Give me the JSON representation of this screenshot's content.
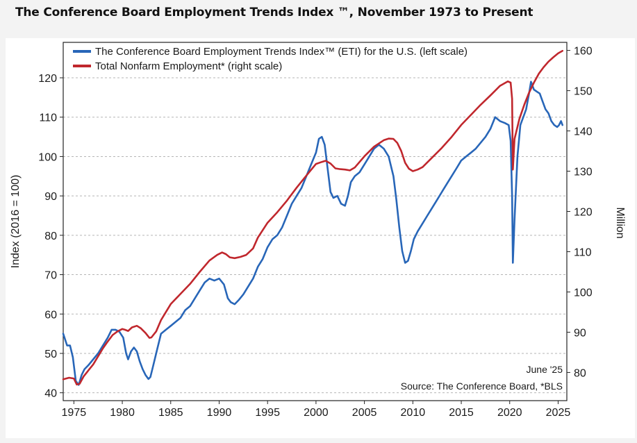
{
  "page": {
    "title": "The Conference Board Employment Trends Index ™, November 1973 to Present"
  },
  "chart_data": {
    "type": "line",
    "title": "The Conference Board Employment Trends Index ™, November 1973 to Present",
    "xlabel": "",
    "ylabel": "Index (2016 = 100)",
    "y2label": "Million",
    "xlim": [
      1973.9,
      2025.9
    ],
    "ylim": [
      38,
      129
    ],
    "y2lim": [
      73,
      162
    ],
    "x_ticks": [
      1975,
      1980,
      1985,
      1990,
      1995,
      2000,
      2005,
      2010,
      2015,
      2020,
      2025
    ],
    "y_ticks": [
      40,
      50,
      60,
      70,
      80,
      90,
      100,
      110,
      120
    ],
    "y2_ticks": [
      80,
      90,
      100,
      110,
      120,
      130,
      140,
      150,
      160
    ],
    "grid": "horizontal-dashed",
    "legend_position": "top-left",
    "series": [
      {
        "name": "The Conference Board Employment Trends Index™ (ETI) for the U.S. (left scale)",
        "color": "#2866b8",
        "axis": "left",
        "x": [
          1973.9,
          1974.3,
          1974.6,
          1974.9,
          1975.2,
          1975.5,
          1975.8,
          1976.1,
          1976.5,
          1977.0,
          1977.5,
          1978.0,
          1978.5,
          1978.9,
          1979.3,
          1979.7,
          1980.1,
          1980.4,
          1980.6,
          1980.9,
          1981.2,
          1981.5,
          1981.8,
          1982.1,
          1982.4,
          1982.7,
          1982.9,
          1983.2,
          1983.6,
          1984.0,
          1984.5,
          1985.0,
          1985.5,
          1986.0,
          1986.5,
          1987.0,
          1987.5,
          1988.0,
          1988.5,
          1989.0,
          1989.5,
          1990.0,
          1990.5,
          1990.9,
          1991.2,
          1991.6,
          1992.0,
          1992.5,
          1993.0,
          1993.5,
          1994.0,
          1994.5,
          1995.0,
          1995.5,
          1996.0,
          1996.5,
          1997.0,
          1997.5,
          1998.0,
          1998.5,
          1999.0,
          1999.5,
          2000.0,
          2000.3,
          2000.6,
          2000.9,
          2001.2,
          2001.5,
          2001.8,
          2002.2,
          2002.6,
          2003.0,
          2003.3,
          2003.6,
          2004.0,
          2004.5,
          2005.0,
          2005.5,
          2006.0,
          2006.5,
          2007.0,
          2007.5,
          2008.0,
          2008.3,
          2008.6,
          2008.9,
          2009.2,
          2009.5,
          2009.8,
          2010.1,
          2010.5,
          2011.0,
          2011.5,
          2012.0,
          2012.5,
          2013.0,
          2013.5,
          2014.0,
          2014.5,
          2015.0,
          2015.5,
          2016.0,
          2016.5,
          2017.0,
          2017.5,
          2018.0,
          2018.5,
          2019.0,
          2019.5,
          2019.9,
          2020.1,
          2020.25,
          2020.33,
          2020.5,
          2020.8,
          2021.1,
          2021.4,
          2021.7,
          2022.0,
          2022.2,
          2022.5,
          2022.8,
          2023.1,
          2023.4,
          2023.7,
          2024.0,
          2024.3,
          2024.6,
          2024.9,
          2025.1,
          2025.3,
          2025.45
        ],
        "values": [
          55,
          52,
          52,
          49,
          43,
          42,
          44.5,
          46,
          47,
          48.5,
          50,
          52,
          54,
          56,
          56,
          55.5,
          54,
          50,
          48.5,
          50.5,
          51.5,
          50.5,
          48,
          46,
          44.5,
          43.5,
          44,
          47,
          51,
          55,
          56,
          57,
          58,
          59,
          61,
          62,
          64,
          66,
          68,
          69,
          68.5,
          69,
          67.5,
          64,
          63,
          62.5,
          63.5,
          65,
          67,
          69,
          72,
          74,
          77,
          79,
          80,
          82,
          85,
          88,
          90,
          92,
          95,
          98,
          101,
          104.5,
          105,
          103,
          97,
          91,
          89.5,
          90,
          88,
          87.5,
          90,
          93.5,
          95,
          96,
          98,
          100,
          102,
          103,
          102,
          100,
          95,
          89,
          82,
          76,
          73,
          73.5,
          76,
          79,
          81,
          83,
          85,
          87,
          89,
          91,
          93,
          95,
          97,
          99,
          100,
          101,
          102,
          103.5,
          105,
          107,
          110,
          109,
          108.5,
          108,
          104,
          90,
          73,
          84,
          100,
          108,
          110,
          112,
          116,
          119,
          117,
          116.5,
          116,
          114,
          112,
          111,
          109,
          108,
          107.5,
          108,
          109,
          108
        ]
      },
      {
        "name": "Total Nonfarm Employment* (right scale)",
        "color": "#c0272d",
        "axis": "right",
        "x": [
          1973.9,
          1974.5,
          1975.0,
          1975.3,
          1975.6,
          1976.0,
          1976.5,
          1977.0,
          1977.5,
          1978.0,
          1978.5,
          1979.0,
          1979.5,
          1980.0,
          1980.3,
          1980.6,
          1981.0,
          1981.5,
          1981.9,
          1982.4,
          1982.8,
          1983.0,
          1983.5,
          1984.0,
          1984.5,
          1985.0,
          1986.0,
          1987.0,
          1988.0,
          1989.0,
          1989.8,
          1990.3,
          1990.7,
          1991.1,
          1991.6,
          1992.2,
          1992.8,
          1993.5,
          1994.0,
          1995.0,
          1996.0,
          1997.0,
          1998.0,
          1999.0,
          2000.0,
          2000.6,
          2001.0,
          2001.5,
          2002.0,
          2002.5,
          2003.0,
          2003.5,
          2004.0,
          2005.0,
          2006.0,
          2007.0,
          2007.5,
          2008.0,
          2008.4,
          2008.8,
          2009.2,
          2009.6,
          2010.0,
          2010.5,
          2011.0,
          2012.0,
          2013.0,
          2014.0,
          2015.0,
          2016.0,
          2017.0,
          2018.0,
          2019.0,
          2019.8,
          2020.1,
          2020.25,
          2020.33,
          2020.5,
          2021.0,
          2021.5,
          2022.0,
          2022.5,
          2023.0,
          2023.5,
          2024.0,
          2024.5,
          2025.0,
          2025.45
        ],
        "values": [
          78.3,
          78.7,
          78.5,
          77.0,
          77.2,
          79.0,
          80.5,
          82.0,
          84.0,
          86.0,
          87.7,
          89.3,
          90.2,
          90.8,
          90.6,
          90.3,
          91.2,
          91.6,
          91.0,
          89.8,
          88.6,
          88.7,
          90.2,
          93.0,
          95.0,
          97.0,
          99.5,
          102.0,
          105.0,
          107.8,
          109.2,
          109.8,
          109.4,
          108.6,
          108.4,
          108.7,
          109.2,
          110.8,
          113.5,
          117.2,
          119.8,
          122.7,
          125.9,
          128.9,
          131.8,
          132.3,
          132.6,
          131.9,
          130.7,
          130.5,
          130.4,
          130.2,
          130.9,
          133.7,
          136.1,
          137.7,
          138.1,
          138.0,
          137.0,
          135.0,
          132.1,
          130.6,
          130.0,
          130.4,
          131.0,
          133.4,
          135.8,
          138.5,
          141.5,
          144.0,
          146.5,
          148.8,
          151.2,
          152.3,
          152.0,
          148.0,
          130.4,
          138.0,
          143.0,
          146.5,
          149.5,
          152.0,
          154.2,
          155.8,
          157.2,
          158.3,
          159.3,
          159.9
        ]
      }
    ],
    "annotations": {
      "date_note": "June '25",
      "source_note": "Source: The Conference Board, *BLS"
    }
  }
}
